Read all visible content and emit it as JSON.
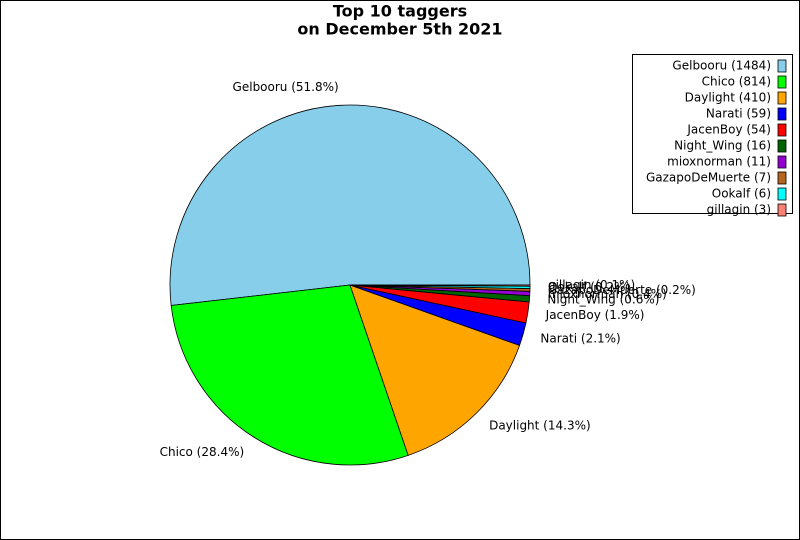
{
  "chart_data": {
    "type": "pie",
    "title": [
      "Top 10 taggers",
      "on December 5th 2021"
    ],
    "categories": [
      "Gelbooru (1484)",
      "Chico (814)",
      "Daylight (410)",
      "Narati (59)",
      "JacenBoy (54)",
      "Night_Wing (16)",
      "mioxnorman (11)",
      "GazapoDeMuerte (7)",
      "Ookalf (6)",
      "gillagin (3)"
    ],
    "values": [
      1484,
      814,
      410,
      59,
      54,
      16,
      11,
      7,
      6,
      3
    ],
    "labels": [
      "Gelbooru (51.8%)",
      "Chico (28.4%)",
      "Daylight (14.3%)",
      "Narati (2.1%)",
      "JacenBoy (1.9%)",
      "Night_Wing (0.6%)",
      "mioxnorman (0.4%)",
      "GazapoDeMuerte (0.2%)",
      "Ookalf (0.2%)",
      "gillagin (0.1%)"
    ],
    "colors": [
      "#87ceeb",
      "#00ff00",
      "#ffa500",
      "#0000ff",
      "#ff0000",
      "#006400",
      "#9400d3",
      "#b5651d",
      "#00ffff",
      "#fa8072"
    ],
    "legend": "upper right"
  }
}
